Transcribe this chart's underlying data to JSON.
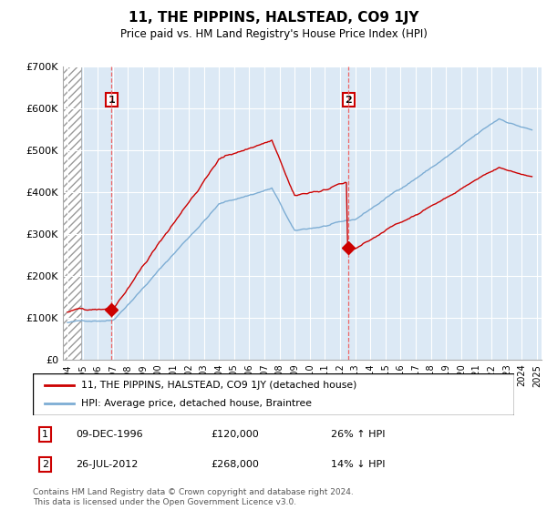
{
  "title": "11, THE PIPPINS, HALSTEAD, CO9 1JY",
  "subtitle": "Price paid vs. HM Land Registry's House Price Index (HPI)",
  "legend_line1": "11, THE PIPPINS, HALSTEAD, CO9 1JY (detached house)",
  "legend_line2": "HPI: Average price, detached house, Braintree",
  "ann1": {
    "label": "1",
    "date_str": "09-DEC-1996",
    "price": 120000,
    "pct": "26% ↑ HPI",
    "x_year": 1996.92
  },
  "ann2": {
    "label": "2",
    "date_str": "26-JUL-2012",
    "price": 268000,
    "pct": "14% ↓ HPI",
    "x_year": 2012.55
  },
  "footer": "Contains HM Land Registry data © Crown copyright and database right 2024.\nThis data is licensed under the Open Government Licence v3.0.",
  "ylim": [
    0,
    700000
  ],
  "yticks": [
    0,
    100000,
    200000,
    300000,
    400000,
    500000,
    600000,
    700000
  ],
  "ytick_labels": [
    "£0",
    "£100K",
    "£200K",
    "£300K",
    "£400K",
    "£500K",
    "£600K",
    "£700K"
  ],
  "xlim": [
    1993.7,
    2025.3
  ],
  "bg_color": "#ffffff",
  "plot_bg": "#dce9f5",
  "red_color": "#cc0000",
  "blue_color": "#7dadd4",
  "grid_color": "#ffffff",
  "hatch_color": "#aaaaaa"
}
